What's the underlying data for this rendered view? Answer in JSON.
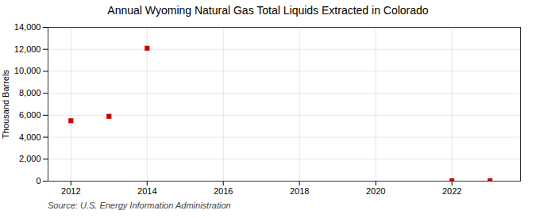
{
  "chart_data": {
    "type": "scatter",
    "title": "Annual Wyoming Natural Gas Total Liquids Extracted in Colorado",
    "ylabel": "Thousand Barrels",
    "caption": "Source: U.S. Energy Information Administration",
    "x": [
      2012,
      2013,
      2014,
      2022,
      2023
    ],
    "values": [
      5500,
      5900,
      12100,
      30,
      30
    ],
    "color": "#cc0000",
    "marker": "square",
    "xlim": [
      2011.4,
      2023.8
    ],
    "xticks": [
      2012,
      2014,
      2016,
      2018,
      2020,
      2022
    ],
    "ylim": [
      0,
      14000
    ],
    "yticks": [
      0,
      {
        "value": 2000,
        "label": "2,000"
      },
      {
        "value": 4000,
        "label": "4,000"
      },
      {
        "value": 6000,
        "label": "6,000"
      },
      {
        "value": 8000,
        "label": "8,000"
      },
      {
        "value": 10000,
        "label": "10,000"
      },
      {
        "value": 12000,
        "label": "12,000"
      },
      {
        "value": 14000,
        "label": "14,000"
      }
    ],
    "grid": true
  }
}
